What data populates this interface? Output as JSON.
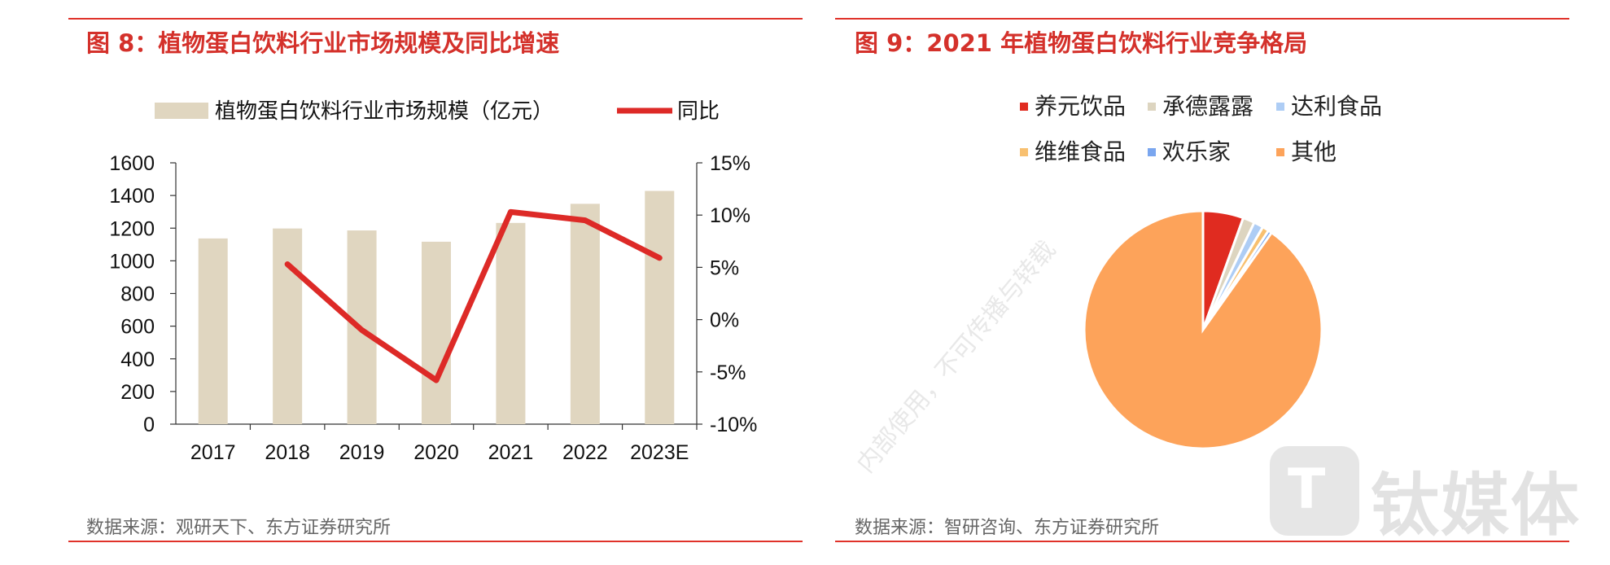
{
  "left": {
    "title": "图 8：植物蛋白饮料行业市场规模及同比增速",
    "source": "数据来源：观研天下、东方证券研究所"
  },
  "right": {
    "title": "图 9：2021 年植物蛋白饮料行业竞争格局",
    "source": "数据来源：智研咨询、东方证券研究所"
  },
  "colors": {
    "accent": "#d4312b",
    "bar": "#e0d6c0",
    "line": "#dd2a27"
  },
  "watermark": {
    "brand": "钛媒体",
    "diagonal": "内部使用，不可传播与转载"
  },
  "chart_data": [
    {
      "type": "bar",
      "categories": [
        "2017",
        "2018",
        "2019",
        "2020",
        "2021",
        "2022",
        "2023E"
      ],
      "series": [
        {
          "name": "植物蛋白饮料行业市场规模（亿元）",
          "type": "bar",
          "axis": "left",
          "values": [
            1137,
            1198,
            1186,
            1117,
            1232,
            1349,
            1428
          ]
        },
        {
          "name": "同比",
          "type": "line",
          "axis": "right",
          "values": [
            null,
            5.3,
            -1.0,
            -5.8,
            10.3,
            9.5,
            5.9
          ]
        }
      ],
      "ylim": [
        0,
        1600
      ],
      "y_ticks": [
        "0",
        "200",
        "400",
        "600",
        "800",
        "1000",
        "1200",
        "1400",
        "1600"
      ],
      "y2lim": [
        -10,
        15
      ],
      "y2_ticks": [
        "-10%",
        "-5%",
        "0%",
        "5%",
        "10%",
        "15%"
      ],
      "legend": "top",
      "grid": false
    },
    {
      "type": "pie",
      "categories": [
        "养元饮品",
        "承德露露",
        "达利食品",
        "维维食品",
        "欢乐家",
        "其他"
      ],
      "values": [
        5.5,
        1.6,
        1.3,
        0.9,
        0.5,
        90.2
      ],
      "colors": [
        "#e02b20",
        "#ddd5c0",
        "#aecdf5",
        "#f8c070",
        "#7aa6ef",
        "#fda35a"
      ],
      "legend": "top"
    }
  ]
}
